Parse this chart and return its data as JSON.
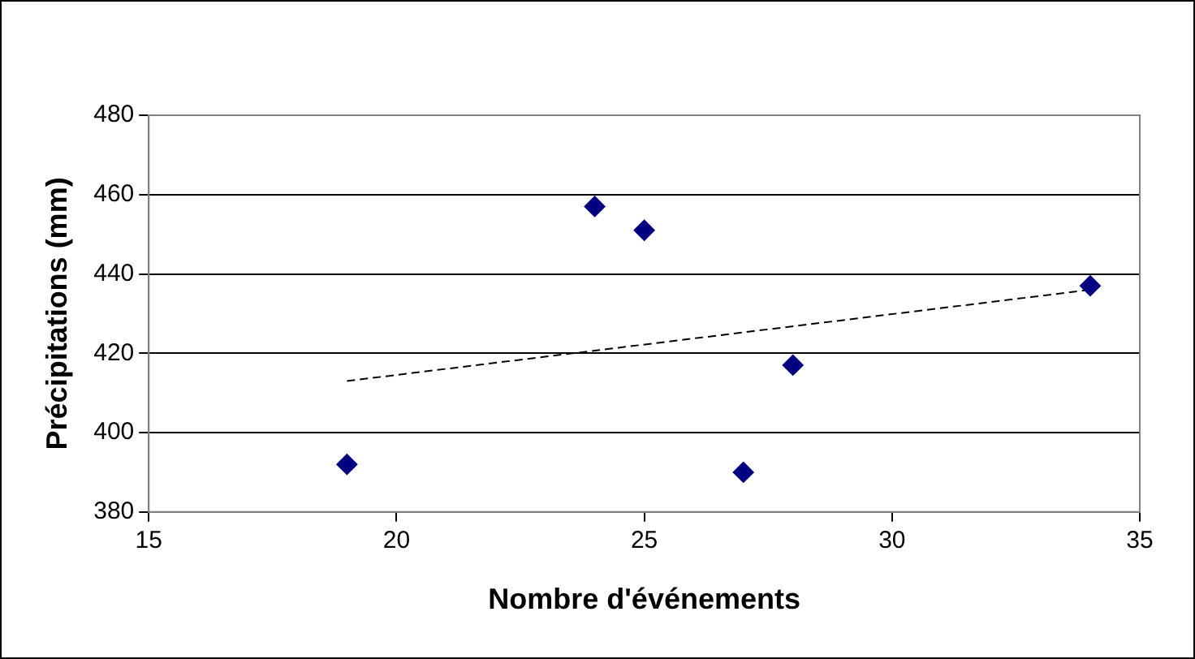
{
  "chart_data": {
    "type": "scatter",
    "xlabel": "Nombre d'événements",
    "ylabel": "Précipitations (mm)",
    "xlim": [
      15,
      35
    ],
    "xticks": [
      15,
      20,
      25,
      30,
      35
    ],
    "ylim": [
      380,
      480
    ],
    "yticks": [
      380,
      400,
      420,
      440,
      460,
      480
    ],
    "grid": "y",
    "legend": false,
    "marker": "diamond",
    "series": [
      {
        "type": "scatter",
        "color": "#000080",
        "x": [
          19,
          24,
          25,
          27,
          28,
          34
        ],
        "values": [
          392,
          457,
          451,
          390,
          417,
          437
        ]
      },
      {
        "type": "line",
        "color": "#000000",
        "line_style": "dashed",
        "marker": "none",
        "x": [
          19,
          34
        ],
        "values": [
          413,
          436
        ]
      }
    ]
  }
}
